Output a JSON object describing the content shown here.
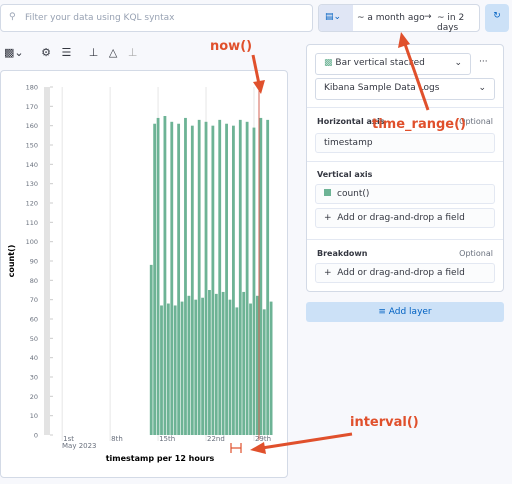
{
  "search": {
    "placeholder": "Filter your data using KQL syntax",
    "date_start": "~ a month ago",
    "date_end": "~ in 2 days"
  },
  "config": {
    "chart_type": "Bar vertical stacked",
    "data_view": "Kibana Sample Data Logs",
    "horizontal_axis": {
      "title": "Horizontal axis",
      "optional": "Optional",
      "field": "timestamp"
    },
    "vertical_axis": {
      "title": "Vertical axis",
      "field": "count()",
      "add": "Add or drag-and-drop a field"
    },
    "breakdown": {
      "title": "Breakdown",
      "optional": "Optional",
      "add": "Add or drag-and-drop a field"
    },
    "add_layer": "Add layer"
  },
  "chart_data": {
    "type": "bar",
    "color": "#6db395",
    "x": [
      14,
      14.5,
      15,
      15.5,
      16,
      16.5,
      17,
      17.5,
      18,
      18.5,
      19,
      19.5,
      20,
      20.5,
      21,
      21.5,
      22,
      22.5,
      23,
      23.5,
      24,
      24.5,
      25,
      25.5,
      26,
      26.5,
      27,
      27.5,
      28,
      28.5,
      29,
      29.5,
      30,
      30.5,
      31,
      31.5
    ],
    "values": [
      88,
      161,
      164,
      67,
      165,
      68,
      162,
      67,
      161,
      69,
      164,
      72,
      160,
      70,
      163,
      71,
      162,
      75,
      160,
      73,
      163,
      74,
      161,
      70,
      160,
      66,
      163,
      74,
      162,
      68,
      159,
      72,
      164,
      65,
      163,
      69
    ],
    "xlim": [
      -1.8,
      32.8
    ],
    "xticks": [
      {
        "value": 1,
        "label": "1st"
      },
      {
        "value": 8,
        "label": "8th"
      },
      {
        "value": 15,
        "label": "15th"
      },
      {
        "value": 22,
        "label": "22nd"
      },
      {
        "value": 29,
        "label": "29th"
      }
    ],
    "x_sublabel": "May 2023",
    "ylim": [
      0,
      180
    ],
    "yticks": [
      0,
      10,
      20,
      30,
      40,
      50,
      60,
      70,
      80,
      90,
      100,
      110,
      120,
      130,
      140,
      150,
      160,
      170,
      180
    ],
    "x_label": "timestamp per 12 hours",
    "y_label": "count()"
  },
  "annotations": {
    "now": "now()",
    "time_range": "time_range()",
    "interval": "interval()"
  }
}
